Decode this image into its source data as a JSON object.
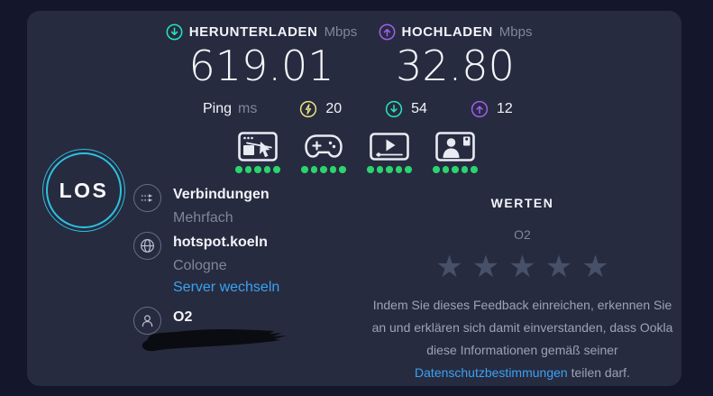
{
  "colors": {
    "background": "#14172b",
    "card": "#272b3f",
    "accent_download": "#26e5c3",
    "accent_upload": "#a05ef0",
    "accent_idle_latency": "#eae381",
    "link_blue": "#3aa2f4",
    "dot_green": "#2bd46e",
    "star_gray": "#475069",
    "go_ring_cyan": "#2cc0e0"
  },
  "results": {
    "download": {
      "label": "HERUNTERLADEN",
      "unit": "Mbps",
      "value": "619.01"
    },
    "upload": {
      "label": "HOCHLADEN",
      "unit": "Mbps",
      "value": "32.80"
    },
    "ping": {
      "label": "Ping",
      "unit": "ms",
      "idle_value": "20",
      "download_value": "54",
      "upload_value": "12"
    }
  },
  "categories": [
    {
      "name": "browsing",
      "dots": 5
    },
    {
      "name": "gaming",
      "dots": 5
    },
    {
      "name": "streaming",
      "dots": 5
    },
    {
      "name": "video-chat",
      "dots": 5
    }
  ],
  "go_button": {
    "label": "LOS"
  },
  "connection": {
    "title": "Verbindungen",
    "subtitle": "Mehrfach"
  },
  "server": {
    "name": "hotspot.koeln",
    "city": "Cologne",
    "change_link": "Server wechseln"
  },
  "provider": {
    "name": "O2"
  },
  "rating": {
    "heading": "WERTEN",
    "subject": "O2",
    "stars": 5,
    "star_glyph": "★",
    "disclaimer_before": "Indem Sie dieses Feedback einreichen, erkennen Sie an und erklären sich damit einverstanden, dass Ookla diese Informationen gemäß seiner ",
    "disclaimer_link": "Datenschutzbestimmungen",
    "disclaimer_after": " teilen darf."
  }
}
